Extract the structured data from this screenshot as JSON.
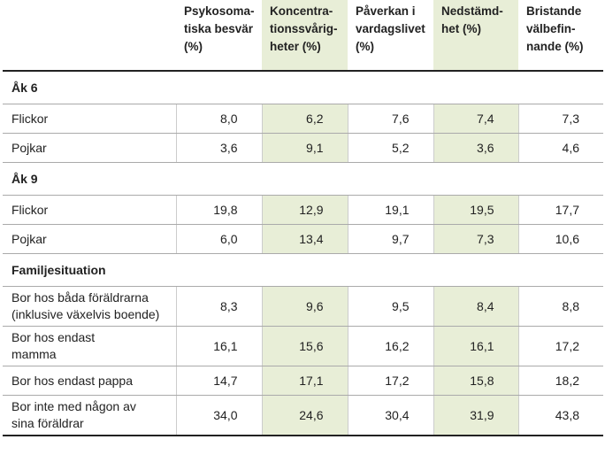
{
  "header": {
    "columns": [
      "Psykosoma-\ntiska besvär\n(%)",
      "Koncentra-\ntionssvårig-\nheter (%)",
      "Påverkan i\nvardagslivet\n(%)",
      "Nedstämd-\nhet (%)",
      "Bristande\nvälbefin-\nnande (%)"
    ]
  },
  "sections": [
    {
      "title": "Åk 6",
      "rows": [
        {
          "label": "Flickor",
          "values": [
            "8,0",
            "6,2",
            "7,6",
            "7,4",
            "7,3"
          ]
        },
        {
          "label": "Pojkar",
          "values": [
            "3,6",
            "9,1",
            "5,2",
            "3,6",
            "4,6"
          ]
        }
      ]
    },
    {
      "title": "Åk 9",
      "rows": [
        {
          "label": "Flickor",
          "values": [
            "19,8",
            "12,9",
            "19,1",
            "19,5",
            "17,7"
          ]
        },
        {
          "label": "Pojkar",
          "values": [
            "6,0",
            "13,4",
            "9,7",
            "7,3",
            "10,6"
          ]
        }
      ]
    },
    {
      "title": "Familjesituation",
      "rows": [
        {
          "label": "Bor hos båda föräldrarna\n(inklusive växelvis boende)",
          "values": [
            "8,3",
            "9,6",
            "9,5",
            "8,4",
            "8,8"
          ]
        },
        {
          "label": "Bor hos endast\nmamma",
          "values": [
            "16,1",
            "15,6",
            "16,2",
            "16,1",
            "17,2"
          ]
        },
        {
          "label": "Bor hos endast pappa",
          "values": [
            "14,7",
            "17,1",
            "17,2",
            "15,8",
            "18,2"
          ]
        },
        {
          "label": "Bor inte med någon av\nsina föräldrar",
          "values": [
            "34,0",
            "24,6",
            "30,4",
            "31,9",
            "43,8"
          ]
        }
      ]
    }
  ],
  "colors": {
    "shade": "#e8eed7",
    "rule": "#222222",
    "divider": "#aaaaaa"
  }
}
